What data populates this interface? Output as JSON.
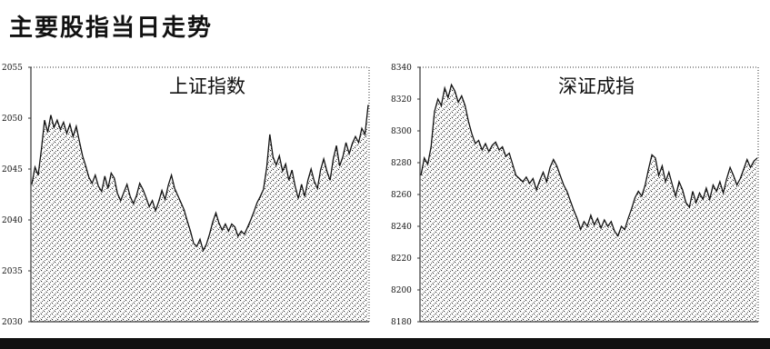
{
  "page": {
    "title": "主要股指当日走势"
  },
  "colors": {
    "stipple": "#222222",
    "frame": "#333333",
    "background": "#ffffff",
    "rule": "#111111"
  },
  "chart_data": [
    {
      "type": "area",
      "title": "上证指数",
      "ylim": [
        2030,
        2055
      ],
      "yticks": [
        "2030",
        "2035",
        "2040",
        "2045",
        "2050",
        "2055"
      ],
      "grid": false,
      "series": [
        {
          "values": [
            2043.5,
            2045.2,
            2044.4,
            2046.9,
            2049.8,
            2048.6,
            2050.3,
            2049.1,
            2049.8,
            2048.9,
            2049.6,
            2048.5,
            2049.4,
            2048.2,
            2049.2,
            2047.7,
            2046.3,
            2045.3,
            2044.2,
            2043.6,
            2044.4,
            2043.3,
            2042.8,
            2044.3,
            2043.1,
            2044.6,
            2044.1,
            2042.6,
            2041.9,
            2042.7,
            2043.5,
            2042.3,
            2041.6,
            2042.4,
            2043.6,
            2043.0,
            2042.2,
            2041.3,
            2041.9,
            2040.9,
            2041.8,
            2042.9,
            2042.0,
            2043.4,
            2044.4,
            2043.1,
            2042.4,
            2041.7,
            2041.0,
            2039.9,
            2038.9,
            2037.7,
            2037.4,
            2038.1,
            2037.0,
            2037.6,
            2038.6,
            2039.8,
            2040.7,
            2039.7,
            2039.0,
            2039.6,
            2038.9,
            2039.6,
            2039.3,
            2038.4,
            2038.9,
            2038.6,
            2039.3,
            2040.0,
            2040.8,
            2041.7,
            2042.3,
            2043.0,
            2045.1,
            2048.4,
            2046.2,
            2045.4,
            2046.3,
            2044.8,
            2045.5,
            2043.9,
            2044.9,
            2043.3,
            2042.1,
            2043.5,
            2042.3,
            2043.9,
            2045.0,
            2043.8,
            2043.1,
            2044.9,
            2046.0,
            2044.8,
            2043.9,
            2046.0,
            2047.3,
            2045.3,
            2046.2,
            2047.6,
            2046.5,
            2047.5,
            2048.2,
            2047.6,
            2049.0,
            2048.4,
            2051.3
          ]
        }
      ]
    },
    {
      "type": "area",
      "title": "深证成指",
      "ylim": [
        8180,
        8340
      ],
      "yticks": [
        "8180",
        "8200",
        "8220",
        "8240",
        "8260",
        "8280",
        "8300",
        "8320",
        "8340"
      ],
      "grid": false,
      "series": [
        {
          "values": [
            8272,
            8283,
            8279,
            8290,
            8312,
            8320,
            8316,
            8327,
            8321,
            8329,
            8325,
            8318,
            8322,
            8316,
            8306,
            8298,
            8292,
            8294,
            8288,
            8292,
            8287,
            8291,
            8293,
            8288,
            8290,
            8284,
            8286,
            8279,
            8272,
            8270,
            8268,
            8271,
            8267,
            8270,
            8263,
            8269,
            8274,
            8268,
            8277,
            8282,
            8278,
            8272,
            8266,
            8262,
            8256,
            8250,
            8245,
            8238,
            8243,
            8240,
            8247,
            8241,
            8245,
            8239,
            8244,
            8240,
            8243,
            8237,
            8234,
            8240,
            8238,
            8245,
            8251,
            8258,
            8262,
            8259,
            8266,
            8276,
            8285,
            8283,
            8272,
            8278,
            8268,
            8274,
            8266,
            8259,
            8268,
            8263,
            8255,
            8252,
            8262,
            8255,
            8261,
            8257,
            8264,
            8257,
            8266,
            8262,
            8268,
            8261,
            8270,
            8277,
            8272,
            8266,
            8270,
            8276,
            8282,
            8277,
            8281,
            8283
          ]
        }
      ]
    }
  ]
}
